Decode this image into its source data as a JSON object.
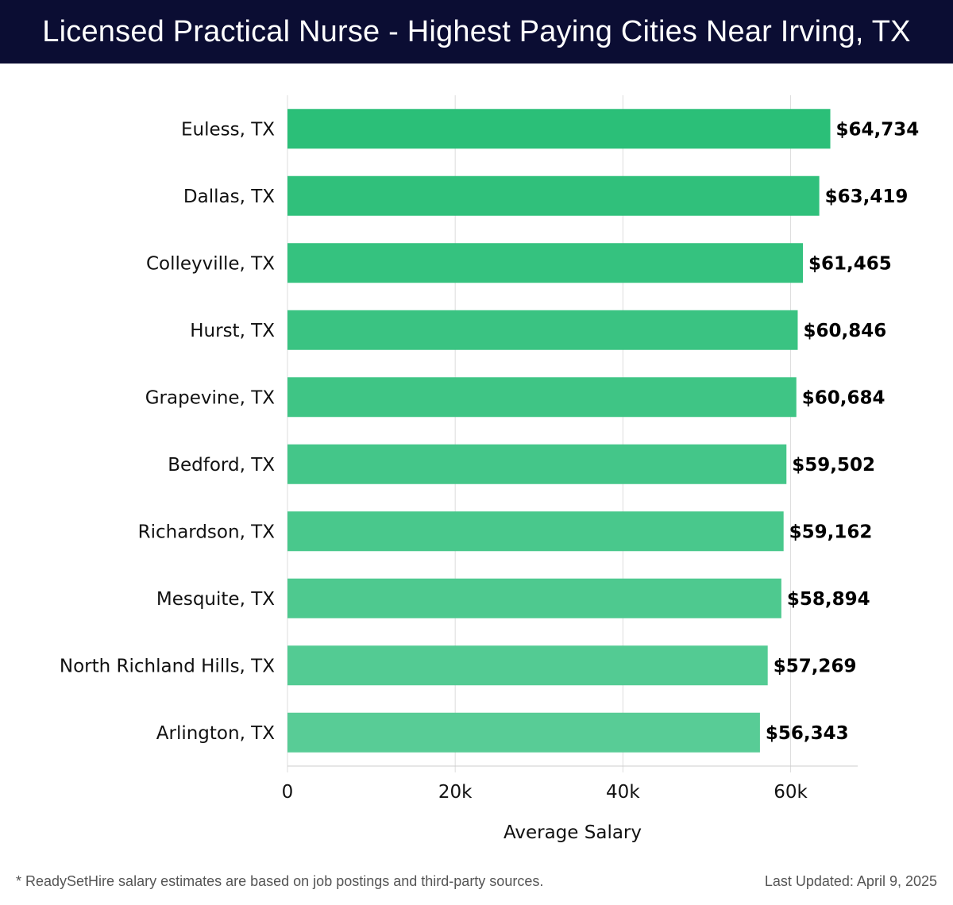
{
  "header": {
    "title": "Licensed Practical Nurse - Highest Paying Cities Near Irving, TX"
  },
  "chart_data": {
    "type": "bar",
    "orientation": "horizontal",
    "title": "Licensed Practical Nurse - Highest Paying Cities Near Irving, TX",
    "categories": [
      "Euless, TX",
      "Dallas, TX",
      "Colleyville, TX",
      "Hurst, TX",
      "Grapevine, TX",
      "Bedford, TX",
      "Richardson, TX",
      "Mesquite, TX",
      "North Richland Hills, TX",
      "Arlington, TX"
    ],
    "values": [
      64734,
      63419,
      61465,
      60846,
      60684,
      59502,
      59162,
      58894,
      57269,
      56343
    ],
    "value_labels": [
      "$64,734",
      "$63,419",
      "$61,465",
      "$60,846",
      "$60,684",
      "$59,502",
      "$59,162",
      "$58,894",
      "$57,269",
      "$56,343"
    ],
    "xlabel": "Average Salary",
    "ylabel": "",
    "xlim": [
      0,
      68000
    ],
    "xticks": [
      0,
      20000,
      40000,
      60000
    ],
    "xtick_labels": [
      "0",
      "20k",
      "40k",
      "60k"
    ],
    "grid": true,
    "bar_color_start": "#2bbf78",
    "bar_color_end": "#58cc96"
  },
  "footer": {
    "note": "* ReadySetHire salary estimates are based on job postings and third-party sources.",
    "updated": "Last Updated: April 9, 2025"
  },
  "colors": {
    "header_bg": "#0b0d33",
    "grid": "#dddddd"
  }
}
